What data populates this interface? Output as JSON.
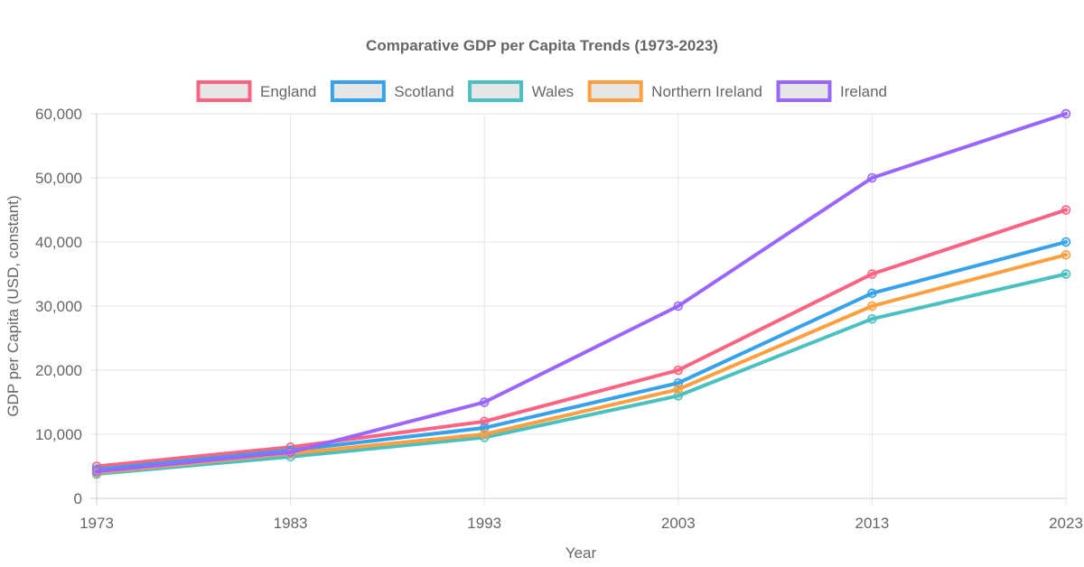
{
  "chart_data": {
    "type": "line",
    "title": "Comparative GDP per Capita Trends (1973-2023)",
    "xlabel": "Year",
    "ylabel": "GDP per Capita (USD, constant)",
    "categories": [
      "1973",
      "1983",
      "1993",
      "2003",
      "2013",
      "2023"
    ],
    "ylim": [
      0,
      60000
    ],
    "yticks": [
      0,
      10000,
      20000,
      30000,
      40000,
      50000,
      60000
    ],
    "ytick_labels": [
      "0",
      "10,000",
      "20,000",
      "30,000",
      "40,000",
      "50,000",
      "60,000"
    ],
    "grid": true,
    "legend_position": "top",
    "series": [
      {
        "name": "England",
        "color": "#ff6384",
        "values": [
          5000,
          8000,
          12000,
          20000,
          35000,
          45000
        ]
      },
      {
        "name": "Scotland",
        "color": "#36a2eb",
        "values": [
          4500,
          7500,
          11000,
          18000,
          32000,
          40000
        ]
      },
      {
        "name": "Wales",
        "color": "#4bc0c0",
        "values": [
          3800,
          6500,
          9500,
          16000,
          28000,
          35000
        ]
      },
      {
        "name": "Northern Ireland",
        "color": "#ff9f40",
        "values": [
          4000,
          7000,
          10000,
          17000,
          30000,
          38000
        ]
      },
      {
        "name": "Ireland",
        "color": "#9966ff",
        "values": [
          4200,
          7200,
          15000,
          30000,
          50000,
          60000
        ]
      }
    ]
  }
}
